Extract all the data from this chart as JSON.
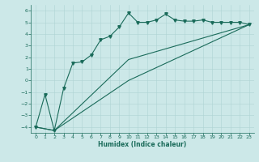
{
  "xlabel": "Humidex (Indice chaleur)",
  "background_color": "#cce8e8",
  "line_color": "#1a6b5a",
  "grid_color": "#aed4d4",
  "xlim": [
    -0.5,
    23.5
  ],
  "ylim": [
    -4.5,
    6.5
  ],
  "yticks": [
    -4,
    -3,
    -2,
    -1,
    0,
    1,
    2,
    3,
    4,
    5,
    6
  ],
  "xticks": [
    0,
    1,
    2,
    3,
    4,
    5,
    6,
    7,
    8,
    9,
    10,
    11,
    12,
    13,
    14,
    15,
    16,
    17,
    18,
    19,
    20,
    21,
    22,
    23
  ],
  "line1_x": [
    0,
    1,
    2,
    3,
    4,
    5,
    6,
    7,
    8,
    9,
    10,
    11,
    12,
    13,
    14,
    15,
    16,
    17,
    18,
    19,
    20,
    21,
    22,
    23
  ],
  "line1_y": [
    -4.0,
    -1.2,
    -4.3,
    -0.7,
    1.5,
    1.6,
    2.2,
    3.5,
    3.8,
    4.6,
    5.8,
    5.0,
    5.0,
    5.2,
    5.7,
    5.2,
    5.1,
    5.1,
    5.2,
    5.0,
    5.0,
    5.0,
    5.0,
    4.8
  ],
  "line2_x": [
    0,
    2,
    10,
    23
  ],
  "line2_y": [
    -4.0,
    -4.3,
    1.8,
    4.8
  ],
  "line3_x": [
    0,
    2,
    10,
    23
  ],
  "line3_y": [
    -4.0,
    -4.3,
    0.0,
    4.8
  ]
}
